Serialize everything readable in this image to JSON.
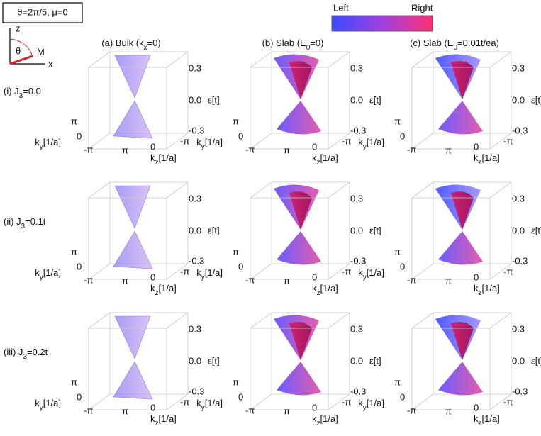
{
  "header": {
    "params": "θ=2π/5, μ=0"
  },
  "axes_icon": {
    "z": "z",
    "theta": "θ",
    "m": "M",
    "x": "x"
  },
  "colorbar": {
    "left": "Left",
    "right": "Right"
  },
  "columns": [
    [
      "(a) Bulk (k",
      "x",
      "=0)"
    ],
    [
      "(b) Slab (E",
      "0",
      "=0)"
    ],
    [
      "(c) Slab (E",
      "0",
      "=0.01t/ea)"
    ]
  ],
  "rows": [
    [
      "(i) J",
      "3",
      "=0.0"
    ],
    [
      "(ii) J",
      "3",
      "=0.1t"
    ],
    [
      "(iii) J",
      "3",
      "=0.2t"
    ]
  ],
  "panel_axes": {
    "energy_ticks": [
      "0.3",
      "0.0",
      "-0.3"
    ],
    "energy_label": "ε[t]",
    "ky_ticks": [
      "π",
      "0",
      "-π"
    ],
    "ky_label": [
      "k",
      "y",
      "[1/a]"
    ],
    "kz_ticks": [
      "π",
      "0",
      "-π"
    ],
    "kz_label": [
      "k",
      "z",
      "[1/a]"
    ]
  }
}
